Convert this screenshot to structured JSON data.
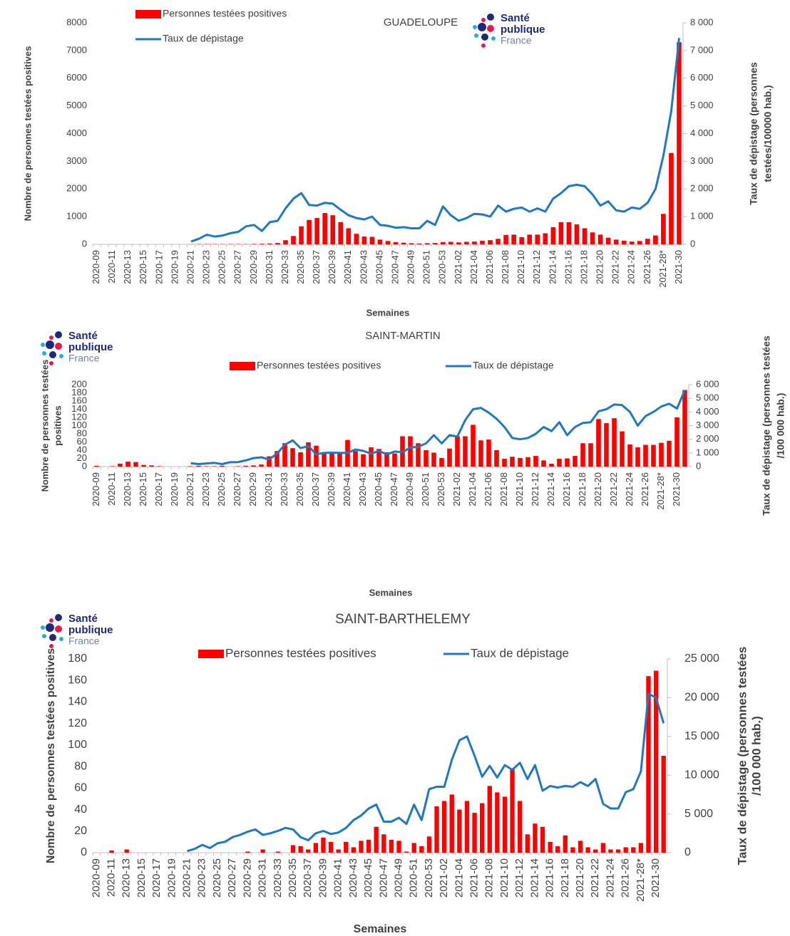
{
  "chart_data": [
    {
      "type": "combo",
      "title": "GUADELOUPE",
      "logo": [
        "Santé",
        "publique",
        "France"
      ],
      "x_label": "Semaines",
      "y_label": [
        "Nombre de personnes testées positives"
      ],
      "y2_label": [
        "Taux de dépistage (personnes",
        "testées/100000 hab.)"
      ],
      "categories": [
        "2020-09",
        null,
        "2020-11",
        null,
        "2020-13",
        null,
        "2020-15",
        null,
        "2020-17",
        null,
        "2020-19",
        null,
        "2020-21",
        null,
        "2020-23",
        null,
        "2020-25",
        null,
        "2020-27",
        null,
        "2020-29",
        null,
        "2020-31",
        null,
        "2020-33",
        null,
        "2020-35",
        null,
        "2020-37",
        null,
        "2020-39",
        null,
        "2020-41",
        null,
        "2020-43",
        null,
        "2020-45",
        null,
        "2020-47",
        null,
        "2020-49",
        null,
        "2020-51",
        null,
        "2020-53",
        null,
        "2021-02",
        null,
        "2021-04",
        null,
        "2021-06",
        null,
        "2021-08",
        null,
        "2021-10",
        null,
        "2021-12",
        null,
        "2021-14",
        null,
        "2021-16",
        null,
        "2021-18",
        null,
        "2021-20",
        null,
        "2021-22",
        null,
        "2021-24",
        null,
        "2021-26",
        null,
        "2021-28*",
        null,
        "2021-30"
      ],
      "series": [
        {
          "name": "Personnes testées positives",
          "kind": "bar",
          "color": "#ff0000",
          "values": [
            0,
            0,
            0,
            0,
            0,
            0,
            0,
            0,
            0,
            0,
            0,
            0,
            5,
            10,
            10,
            10,
            10,
            10,
            10,
            10,
            15,
            20,
            30,
            50,
            150,
            300,
            650,
            880,
            950,
            1130,
            1050,
            800,
            580,
            380,
            280,
            270,
            170,
            120,
            80,
            60,
            40,
            30,
            40,
            50,
            80,
            90,
            70,
            90,
            100,
            130,
            150,
            200,
            340,
            350,
            260,
            350,
            350,
            400,
            620,
            800,
            800,
            720,
            580,
            430,
            350,
            240,
            170,
            130,
            100,
            120,
            200,
            320,
            1100,
            3300,
            7300
          ]
        },
        {
          "name": "Taux de dépistage",
          "kind": "line",
          "axis": "y2",
          "color": "#1f78c1",
          "values": [
            null,
            null,
            null,
            null,
            null,
            null,
            null,
            null,
            null,
            null,
            null,
            null,
            100,
            200,
            350,
            280,
            320,
            400,
            450,
            650,
            700,
            480,
            800,
            850,
            1300,
            1650,
            1850,
            1420,
            1400,
            1500,
            1470,
            1250,
            1050,
            950,
            900,
            1000,
            700,
            670,
            600,
            620,
            580,
            580,
            850,
            700,
            1370,
            1050,
            850,
            950,
            1100,
            1080,
            1000,
            1400,
            1180,
            1280,
            1330,
            1180,
            1300,
            1180,
            1650,
            1850,
            2100,
            2150,
            2100,
            1800,
            1400,
            1550,
            1230,
            1180,
            1330,
            1280,
            1500,
            2000,
            3200,
            4800,
            7450
          ]
        }
      ],
      "ylim": [
        0,
        8000
      ],
      "yticks": [
        0,
        1000,
        2000,
        3000,
        4000,
        5000,
        6000,
        7000,
        8000
      ],
      "y2lim": [
        0,
        8000
      ],
      "y2ticks": [
        0,
        {
          "value": 1000,
          "label": "1 000"
        },
        {
          "value": 2000,
          "label": "2 000"
        },
        {
          "value": 3000,
          "label": "3 000"
        },
        {
          "value": 4000,
          "label": "4 000"
        },
        {
          "value": 5000,
          "label": "5 000"
        },
        {
          "value": 6000,
          "label": "6 000"
        },
        {
          "value": 7000,
          "label": "7 000"
        },
        {
          "value": 8000,
          "label": "8 000"
        }
      ],
      "grid": false
    },
    {
      "type": "combo",
      "title": "SAINT-MARTIN",
      "logo": [
        "Santé",
        "publique",
        "France"
      ],
      "x_label": "Semaines",
      "y_label": [
        "Nombre de personnes testées",
        "positives"
      ],
      "y2_label": [
        "Taux de dépistage (personnes testées",
        "/100 000 hab.)"
      ],
      "categories": [
        "2020-09",
        null,
        "2020-11",
        null,
        "2020-13",
        null,
        "2020-15",
        null,
        "2020-17",
        null,
        "2020-19",
        null,
        "2020-21",
        null,
        "2020-23",
        null,
        "2020-25",
        null,
        "2020-27",
        null,
        "2020-29",
        null,
        "2020-31",
        null,
        "2020-33",
        null,
        "2020-35",
        null,
        "2020-37",
        null,
        "2020-39",
        null,
        "2020-41",
        null,
        "2020-43",
        null,
        "2020-45",
        null,
        "2020-47",
        null,
        "2020-49",
        null,
        "2020-51",
        null,
        "2020-53",
        null,
        "2021-02",
        null,
        "2021-04",
        null,
        "2021-06",
        null,
        "2021-08",
        null,
        "2021-10",
        null,
        "2021-12",
        null,
        "2021-14",
        null,
        "2021-16",
        null,
        "2021-18",
        null,
        "2021-20",
        null,
        "2021-22",
        null,
        "2021-24",
        null,
        "2021-26",
        null,
        "2021-28*",
        null,
        "2021-30",
        null
      ],
      "series": [
        {
          "name": "Personnes testées positives",
          "kind": "bar",
          "color": "#ff0000",
          "values": [
            2,
            0,
            1,
            7,
            12,
            11,
            4,
            3,
            1,
            0,
            0,
            0,
            1,
            2,
            1,
            1,
            2,
            0,
            1,
            2,
            3,
            5,
            25,
            38,
            57,
            45,
            35,
            59,
            51,
            35,
            36,
            35,
            65,
            38,
            30,
            47,
            43,
            35,
            32,
            74,
            74,
            57,
            40,
            34,
            21,
            44,
            74,
            74,
            102,
            64,
            66,
            40,
            19,
            24,
            21,
            23,
            26,
            15,
            7,
            19,
            20,
            26,
            57,
            57,
            116,
            106,
            118,
            86,
            54,
            47,
            53,
            53,
            58,
            63,
            120,
            187
          ]
        },
        {
          "name": "Taux de dépistage",
          "kind": "line",
          "axis": "y2",
          "color": "#1f78c1",
          "values": [
            null,
            null,
            null,
            null,
            null,
            null,
            null,
            null,
            null,
            null,
            null,
            null,
            250,
            180,
            230,
            270,
            180,
            320,
            330,
            450,
            620,
            680,
            520,
            950,
            1600,
            1920,
            1350,
            1500,
            900,
            1000,
            1020,
            1000,
            1000,
            1250,
            1150,
            950,
            1150,
            900,
            1100,
            1050,
            1400,
            1450,
            1700,
            2300,
            1700,
            2300,
            2200,
            3400,
            4200,
            4300,
            3950,
            3500,
            2900,
            2100,
            2000,
            2100,
            2400,
            2900,
            2600,
            3250,
            2300,
            2900,
            3200,
            3250,
            4050,
            4200,
            4550,
            4500,
            4000,
            3000,
            3700,
            4000,
            4400,
            4600,
            4250,
            5600
          ]
        }
      ],
      "ylim": [
        0,
        200
      ],
      "yticks": [
        0,
        20,
        40,
        60,
        80,
        100,
        120,
        140,
        160,
        180,
        200
      ],
      "y2lim": [
        0,
        6000
      ],
      "y2ticks": [
        0,
        {
          "value": 1000,
          "label": "1 000"
        },
        {
          "value": 2000,
          "label": "2 000"
        },
        {
          "value": 3000,
          "label": "3 000"
        },
        {
          "value": 4000,
          "label": "4 000"
        },
        {
          "value": 5000,
          "label": "5 000"
        },
        {
          "value": 6000,
          "label": "6 000"
        }
      ],
      "grid": false
    },
    {
      "type": "combo",
      "title": "SAINT-BARTHELEMY",
      "logo": [
        "Santé",
        "publique",
        "France"
      ],
      "x_label": "Semaines",
      "y_label": [
        "Nombre de personnes testées positives"
      ],
      "y2_label": [
        "Taux de dépistage (personnes testées",
        "/100 000 hab.)"
      ],
      "categories": [
        "2020-09",
        null,
        "2020-11",
        null,
        "2020-13",
        null,
        "2020-15",
        null,
        "2020-17",
        null,
        "2020-19",
        null,
        "2020-21",
        null,
        "2020-23",
        null,
        "2020-25",
        null,
        "2020-27",
        null,
        "2020-29",
        null,
        "2020-31",
        null,
        "2020-33",
        null,
        "2020-35",
        null,
        "2020-37",
        null,
        "2020-39",
        null,
        "2020-41",
        null,
        "2020-43",
        null,
        "2020-45",
        null,
        "2020-47",
        null,
        "2020-49",
        null,
        "2020-51",
        null,
        "2020-53",
        null,
        "2021-02",
        null,
        "2021-04",
        null,
        "2021-06",
        null,
        "2021-08",
        null,
        "2021-10",
        null,
        "2021-12",
        null,
        "2021-14",
        null,
        "2021-16",
        null,
        "2021-18",
        null,
        "2021-20",
        null,
        "2021-22",
        null,
        "2021-24",
        null,
        "2021-26",
        null,
        "2021-28*",
        null,
        "2021-30",
        null
      ],
      "series": [
        {
          "name": "Personnes testées positives",
          "kind": "bar",
          "color": "#ff0000",
          "values": [
            0,
            0,
            2,
            0,
            3,
            0,
            0,
            0,
            0,
            0,
            0,
            0,
            0,
            0,
            0,
            0,
            0,
            0,
            0,
            0,
            1,
            0,
            3,
            0,
            1,
            0,
            7,
            6,
            3,
            9,
            14,
            10,
            3,
            10,
            5,
            11,
            12,
            24,
            17,
            12,
            11,
            1,
            9,
            6,
            15,
            43,
            48,
            54,
            40,
            48,
            37,
            46,
            62,
            56,
            52,
            78,
            48,
            17,
            27,
            24,
            10,
            6,
            16,
            5,
            11,
            5,
            3,
            9,
            3,
            3,
            5,
            5,
            9,
            164,
            169,
            90
          ]
        },
        {
          "name": "Taux de dépistage",
          "kind": "line",
          "axis": "y2",
          "color": "#1f78c1",
          "values": [
            null,
            null,
            null,
            null,
            null,
            null,
            null,
            null,
            null,
            null,
            null,
            null,
            200,
            500,
            1000,
            600,
            1200,
            1400,
            2000,
            2300,
            2700,
            3000,
            2300,
            2500,
            2800,
            3200,
            3000,
            2000,
            1600,
            2500,
            2800,
            2400,
            2600,
            3200,
            4200,
            4800,
            5700,
            6200,
            4000,
            4000,
            4500,
            3700,
            6200,
            4200,
            8200,
            8500,
            8500,
            12000,
            14500,
            15000,
            12500,
            9800,
            11200,
            9700,
            11300,
            10700,
            11600,
            9500,
            11300,
            8000,
            8600,
            8400,
            8600,
            8500,
            9100,
            8600,
            9500,
            6300,
            5700,
            5700,
            7800,
            8200,
            10500,
            20500,
            20000,
            16700
          ]
        }
      ],
      "ylim": [
        0,
        180
      ],
      "yticks": [
        0,
        20,
        40,
        60,
        80,
        100,
        120,
        140,
        160,
        180
      ],
      "y2lim": [
        0,
        25000
      ],
      "y2ticks": [
        0,
        {
          "value": 5000,
          "label": "5 000"
        },
        {
          "value": 10000,
          "label": "10 000"
        },
        {
          "value": 15000,
          "label": "15 000"
        },
        {
          "value": 20000,
          "label": "20 000"
        },
        {
          "value": 25000,
          "label": "25 000"
        }
      ],
      "grid": false
    }
  ]
}
